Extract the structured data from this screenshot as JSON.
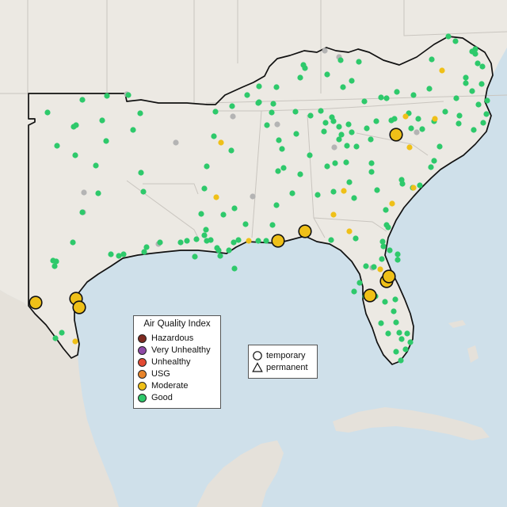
{
  "legend": {
    "title": "Air Quality Index",
    "categories": [
      {
        "label": "Hazardous",
        "color": "#7e2a20"
      },
      {
        "label": "Very Unhealthy",
        "color": "#8f4aa6"
      },
      {
        "label": "Unhealthy",
        "color": "#e34a33"
      },
      {
        "label": "USG",
        "color": "#e8842a"
      },
      {
        "label": "Moderate",
        "color": "#efc018"
      },
      {
        "label": "Good",
        "color": "#2ec96b"
      }
    ]
  },
  "monitor_types": [
    {
      "label": "temporary",
      "icon": "circle-icon"
    },
    {
      "label": "permanent",
      "icon": "triangle-icon"
    }
  ],
  "colors": {
    "land": "#ece9e3",
    "water": "#cfe0ea",
    "state_border": "#c9c5bf",
    "region_outline": "#111111",
    "no_data_station": "#b4b4b4"
  }
}
